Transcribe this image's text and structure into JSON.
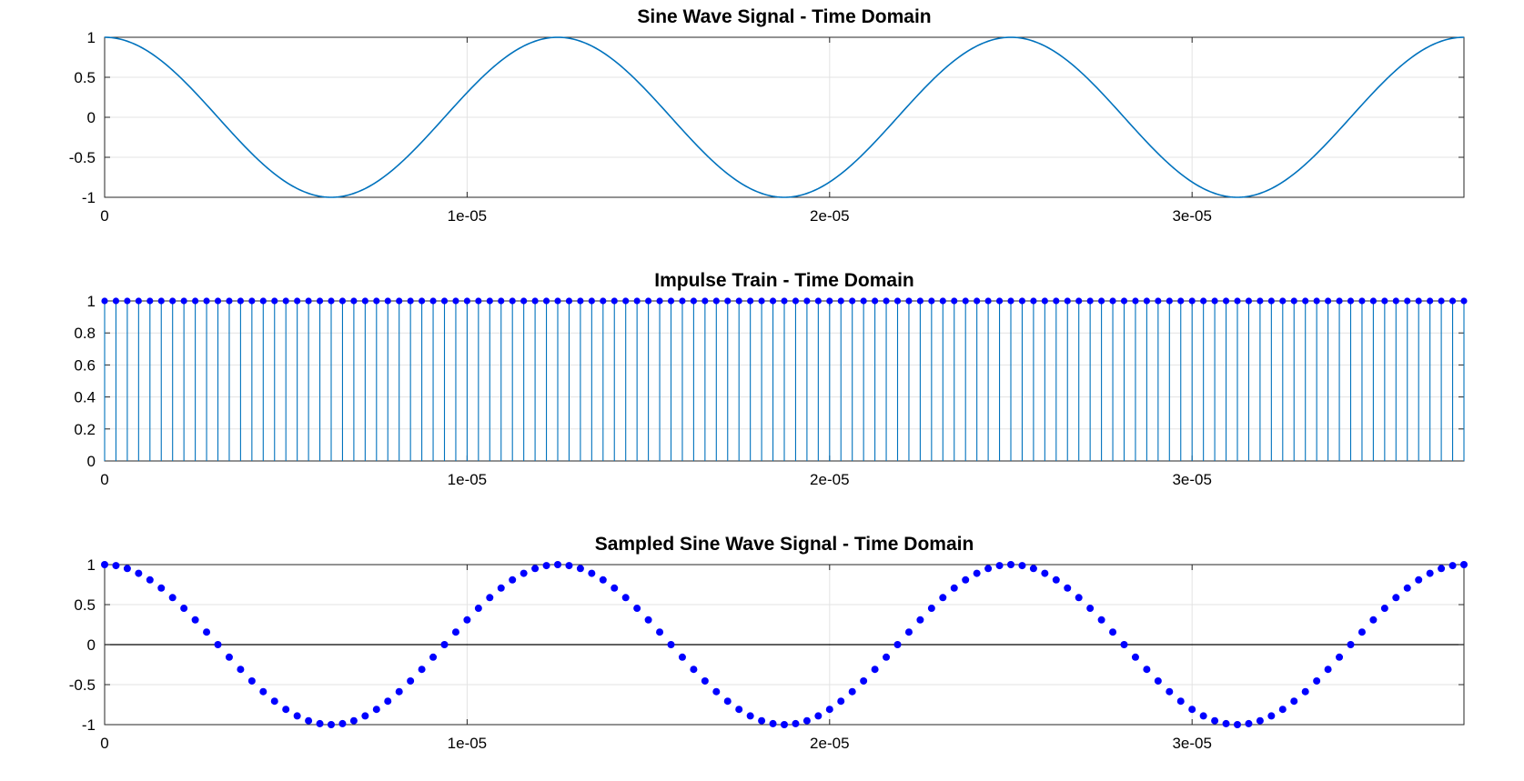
{
  "chart_data": [
    {
      "type": "line",
      "title": "Sine Wave Signal - Time Domain",
      "xlabel": "",
      "ylabel": "",
      "xlim": [
        0,
        3.75e-05
      ],
      "ylim": [
        -1,
        1
      ],
      "grid": true,
      "x_ticks": [
        0,
        1e-05,
        2e-05,
        3e-05
      ],
      "x_tick_labels": [
        "0",
        "1e-05",
        "2e-05",
        "3e-05"
      ],
      "y_ticks": [
        -1,
        -0.5,
        0,
        0.5,
        1
      ],
      "y_tick_labels": [
        "-1",
        "-0.5",
        "0",
        "0.5",
        "1"
      ],
      "series": [
        {
          "function": "cos",
          "frequency_hz": 80000,
          "amplitude": 1,
          "x_start": 0,
          "x_end": 3.75e-05,
          "color": "#0072BD"
        }
      ]
    },
    {
      "type": "stem",
      "title": "Impulse Train - Time Domain",
      "xlabel": "",
      "ylabel": "",
      "xlim": [
        0,
        3.75e-05
      ],
      "ylim": [
        0,
        1
      ],
      "grid": true,
      "x_ticks": [
        0,
        1e-05,
        2e-05,
        3e-05
      ],
      "x_tick_labels": [
        "0",
        "1e-05",
        "2e-05",
        "3e-05"
      ],
      "y_ticks": [
        0,
        0.2,
        0.4,
        0.6,
        0.8,
        1
      ],
      "y_tick_labels": [
        "0",
        "0.2",
        "0.4",
        "0.6",
        "0.8",
        "1"
      ],
      "series": [
        {
          "value": 1,
          "sample_interval": 3.125e-07,
          "x_start": 0,
          "x_end": 3.75e-05,
          "stem_color": "#0072BD",
          "marker_color": "#0000ff"
        }
      ]
    },
    {
      "type": "scatter",
      "title": "Sampled Sine Wave Signal - Time Domain",
      "xlabel": "",
      "ylabel": "",
      "xlim": [
        0,
        3.75e-05
      ],
      "ylim": [
        -1,
        1
      ],
      "grid": true,
      "zero_line": true,
      "x_ticks": [
        0,
        1e-05,
        2e-05,
        3e-05
      ],
      "x_tick_labels": [
        "0",
        "1e-05",
        "2e-05",
        "3e-05"
      ],
      "y_ticks": [
        -1,
        -0.5,
        0,
        0.5,
        1
      ],
      "y_tick_labels": [
        "-1",
        "-0.5",
        "0",
        "0.5",
        "1"
      ],
      "series": [
        {
          "function": "cos",
          "frequency_hz": 80000,
          "amplitude": 1,
          "sample_interval": 3.125e-07,
          "x_start": 0,
          "x_end": 3.75e-05,
          "marker_color": "#0000ff"
        }
      ]
    }
  ]
}
